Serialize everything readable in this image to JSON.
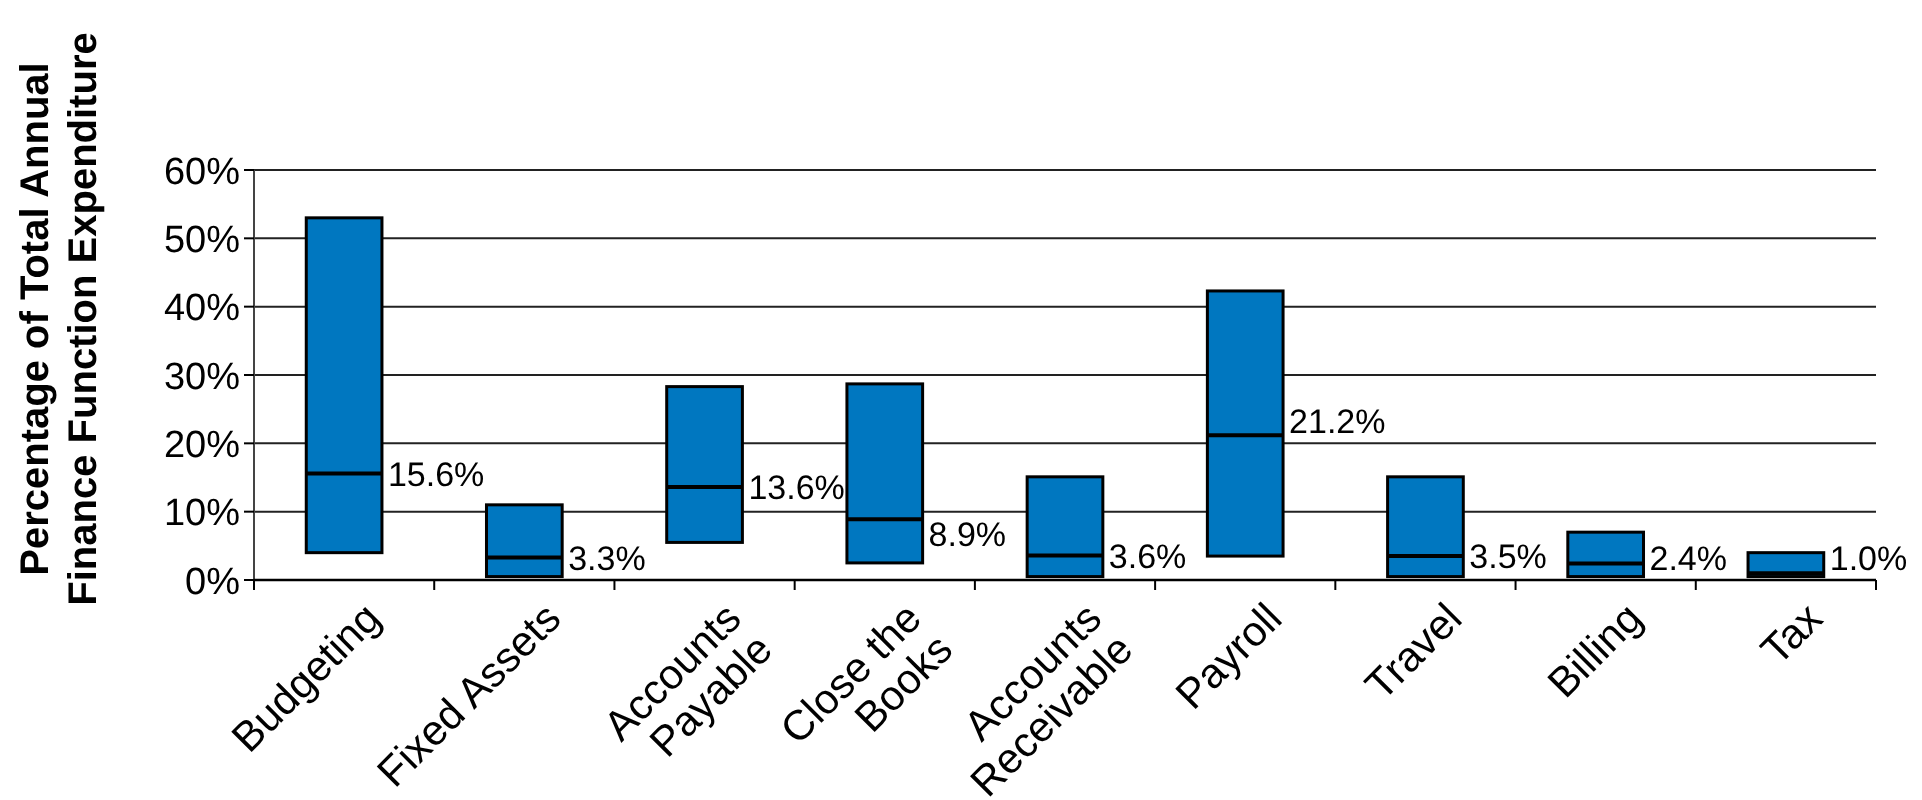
{
  "chart_data": {
    "type": "box",
    "ylabel": "Percentage of Total Annual Finance Function Expenditure",
    "categories": [
      "Budgeting",
      "Fixed Assets",
      "Accounts Payable",
      "Close the Books",
      "Accounts Receivable",
      "Payroll",
      "Travel",
      "Billing",
      "Tax"
    ],
    "color": "#0077c0",
    "boxes": [
      {
        "low": 4,
        "q1": 4,
        "median": 15.6,
        "q3": 53,
        "high": 53
      },
      {
        "low": 0.5,
        "q1": 0.5,
        "median": 3.3,
        "q3": 11,
        "high": 11
      },
      {
        "low": 5.5,
        "q1": 5.5,
        "median": 13.6,
        "q3": 28.3,
        "high": 28.3
      },
      {
        "low": 2.5,
        "q1": 2.5,
        "median": 8.9,
        "q3": 28.7,
        "high": 28.7
      },
      {
        "low": 0.5,
        "q1": 0.5,
        "median": 3.6,
        "q3": 15.1,
        "high": 15.1
      },
      {
        "low": 3.5,
        "q1": 3.5,
        "median": 21.2,
        "q3": 42.3,
        "high": 42.3
      },
      {
        "low": 0.5,
        "q1": 0.5,
        "median": 3.5,
        "q3": 15.1,
        "high": 15.1
      },
      {
        "low": 0.5,
        "q1": 0.5,
        "median": 2.4,
        "q3": 7,
        "high": 7
      },
      {
        "low": 0.5,
        "q1": 0.5,
        "median": 1,
        "q3": 4,
        "high": 4
      }
    ],
    "annotations": [
      {
        "text": "15.6%",
        "x": "Budgeting",
        "y": 15.6
      },
      {
        "text": "3.3%",
        "x": "Fixed Assets",
        "y": 3.3
      },
      {
        "text": "13.6%",
        "x": "Accounts Payable",
        "y": 13.6
      },
      {
        "text": "8.9%",
        "x": "Close the Books",
        "y": 8.9
      },
      {
        "text": "3.6%",
        "x": "Accounts Receivable",
        "y": 3.6
      },
      {
        "text": "21.2%",
        "x": "Payroll",
        "y": 21.2
      },
      {
        "text": "3.5%",
        "x": "Travel",
        "y": 3.5
      },
      {
        "text": "2.4%",
        "x": "Billing",
        "y": 2.4
      },
      {
        "text": "1.0%",
        "x": "Tax",
        "y": 1
      }
    ],
    "ylim": [
      0,
      60
    ],
    "yticks": [
      {
        "value": 0,
        "label": "0%"
      },
      {
        "value": 10,
        "label": "10%"
      },
      {
        "value": 20,
        "label": "20%"
      },
      {
        "value": 30,
        "label": "30%"
      },
      {
        "value": 40,
        "label": "40%"
      },
      {
        "value": 50,
        "label": "50%"
      },
      {
        "value": 60,
        "label": "60%"
      }
    ],
    "grid": "y"
  }
}
